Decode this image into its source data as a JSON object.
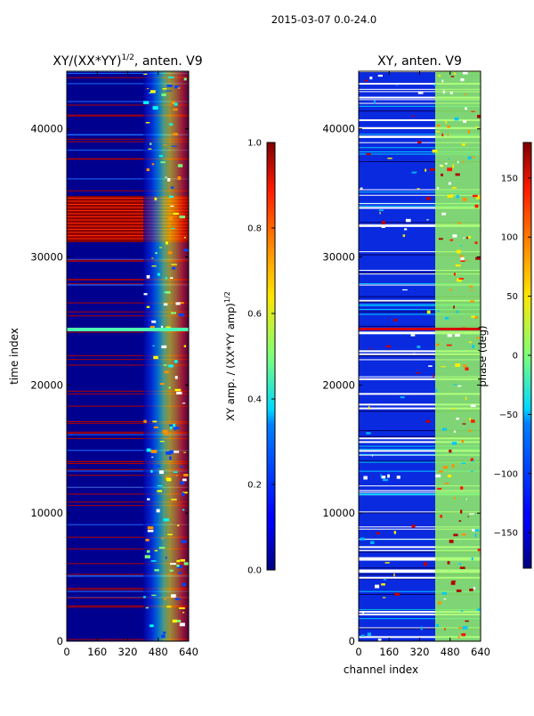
{
  "figure_title": "2015-03-07 0.0-24.0",
  "chart_data": [
    {
      "type": "heatmap",
      "title_main": "XY/(XX*YY)",
      "title_sup": "1/2",
      "title_rest": ", anten. V9",
      "ylabel": "time index",
      "xlabel": "",
      "xlim": [
        0,
        640
      ],
      "ylim": [
        0,
        44500
      ],
      "x_ticks": [
        0,
        160,
        320,
        480,
        640
      ],
      "y_ticks": [
        0,
        10000,
        20000,
        30000,
        40000
      ],
      "x_tick_labels": [
        "0",
        "160",
        "320",
        "480",
        "640"
      ],
      "y_tick_labels": [
        "0",
        "10000",
        "20000",
        "30000",
        "40000"
      ],
      "colorbar": {
        "label_main": "XY amp. / (XX*YY amp)",
        "label_sup": "1/2",
        "range": [
          0.0,
          1.0
        ],
        "ticks": [
          0.0,
          0.2,
          0.4,
          0.6,
          0.8,
          1.0
        ],
        "tick_labels": [
          "0.0",
          "0.2",
          "0.4",
          "0.6",
          "0.8",
          "1.0"
        ]
      }
    },
    {
      "type": "heatmap",
      "title_main": "XY, anten. V9",
      "ylabel": "",
      "xlabel": "channel index",
      "xlim": [
        0,
        640
      ],
      "ylim": [
        0,
        44500
      ],
      "x_ticks": [
        0,
        160,
        320,
        480,
        640
      ],
      "y_ticks": [
        0,
        10000,
        20000,
        30000,
        40000
      ],
      "x_tick_labels": [
        "0",
        "160",
        "320",
        "480",
        "640"
      ],
      "y_tick_labels": [
        "0",
        "10000",
        "20000",
        "30000",
        "40000"
      ],
      "colorbar": {
        "label_main": "phase (deg)",
        "range": [
          -180,
          180
        ],
        "ticks": [
          -150,
          -100,
          -50,
          0,
          50,
          100,
          150
        ],
        "tick_labels": [
          "−150",
          "−100",
          "−50",
          "0",
          "50",
          "100",
          "150"
        ]
      }
    }
  ]
}
